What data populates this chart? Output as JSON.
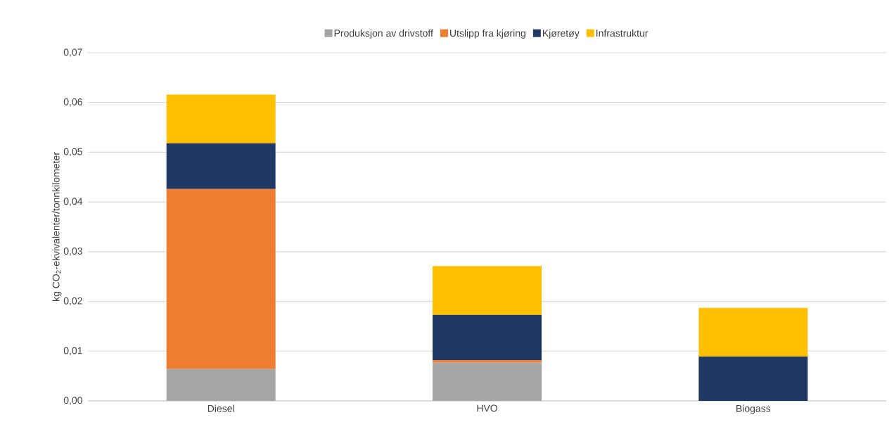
{
  "chart_data": {
    "type": "bar",
    "stacked": true,
    "ylabel": "kg CO$_{2}$-ekvivalenter/tonnkilometer",
    "categories": [
      "Diesel",
      "HVO",
      "Biogass"
    ],
    "series": [
      {
        "name": "Produksjon av drivstoff",
        "color": "#a5a5a5",
        "values": [
          0.0064,
          0.0077,
          0
        ]
      },
      {
        "name": "Utslipp fra kjøring",
        "color": "#ed7d31",
        "values": [
          0.0362,
          0.0005,
          0
        ]
      },
      {
        "name": "Kjøretøy",
        "color": "#203864",
        "values": [
          0.0092,
          0.0091,
          0.0089
        ]
      },
      {
        "name": "Infrastruktur",
        "color": "#ffc000",
        "values": [
          0.0098,
          0.0098,
          0.0098
        ]
      }
    ],
    "ylim": [
      0,
      0.07
    ],
    "yticks": [
      {
        "value": 0,
        "label": "0,00"
      },
      {
        "value": 0.01,
        "label": "0,01"
      },
      {
        "value": 0.02,
        "label": "0,02"
      },
      {
        "value": 0.03,
        "label": "0,03"
      },
      {
        "value": 0.04,
        "label": "0,04"
      },
      {
        "value": 0.05,
        "label": "0,05"
      },
      {
        "value": 0.06,
        "label": "0,06"
      },
      {
        "value": 0.07,
        "label": "0,07"
      }
    ],
    "grid": "y",
    "legend": "top"
  }
}
